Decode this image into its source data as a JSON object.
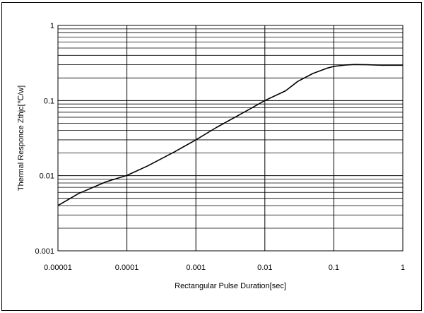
{
  "chart_data": {
    "type": "line",
    "title": "",
    "xlabel": "Rectangular Pulse Duration[sec]",
    "ylabel": "Thermal Responce Zthjc[℃/w]",
    "xscale": "log",
    "yscale": "log",
    "xlim": [
      1e-05,
      1
    ],
    "ylim": [
      0.001,
      1
    ],
    "grid": true,
    "x_ticks": [
      {
        "value": 1e-05,
        "label": "0.00001"
      },
      {
        "value": 0.0001,
        "label": "0.0001"
      },
      {
        "value": 0.001,
        "label": "0.001"
      },
      {
        "value": 0.01,
        "label": "0.01"
      },
      {
        "value": 0.1,
        "label": "0.1"
      },
      {
        "value": 1,
        "label": "1"
      }
    ],
    "y_ticks": [
      {
        "value": 0.001,
        "label": "0.001"
      },
      {
        "value": 0.01,
        "label": "0.01"
      },
      {
        "value": 0.1,
        "label": "0.1"
      },
      {
        "value": 1,
        "label": "1"
      }
    ],
    "series": [
      {
        "color": "#000000",
        "x": [
          1e-05,
          2e-05,
          5e-05,
          0.0001,
          0.0002,
          0.0005,
          0.001,
          0.002,
          0.005,
          0.01,
          0.02,
          0.03,
          0.05,
          0.08,
          0.1,
          0.15,
          0.2,
          0.3,
          0.5,
          1
        ],
        "y": [
          0.004,
          0.0058,
          0.0083,
          0.0101,
          0.0135,
          0.021,
          0.03,
          0.044,
          0.07,
          0.1,
          0.135,
          0.18,
          0.23,
          0.27,
          0.285,
          0.298,
          0.302,
          0.3,
          0.295,
          0.295
        ]
      }
    ]
  }
}
